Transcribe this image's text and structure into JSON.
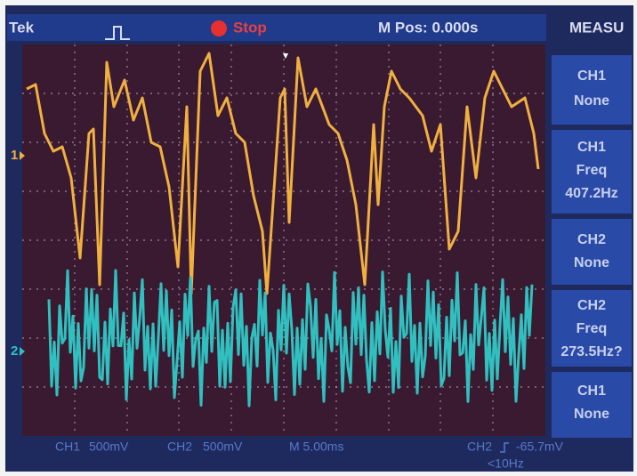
{
  "header": {
    "brand": "Tek",
    "status": "Stop",
    "position": "M Pos: 0.000s",
    "menu": "MEASU"
  },
  "channel_markers": [
    "1",
    "2"
  ],
  "measure_panels": [
    {
      "source": "CH1",
      "label": "None"
    },
    {
      "source": "CH1",
      "label": "Freq",
      "value": "407.2Hz"
    },
    {
      "source": "CH2",
      "label": "None"
    },
    {
      "source": "CH2",
      "label": "Freq",
      "value": "273.5Hz?"
    },
    {
      "source": "CH1",
      "label": "None"
    }
  ],
  "footer": {
    "ch1": "CH1",
    "ch1_scale": "500mV",
    "ch2": "CH2",
    "ch2_scale": "500mV",
    "timebase": "M 5.00ms",
    "trigger_source": "CH2",
    "trigger_level": "-65.7mV",
    "trigger_freq": "<10Hz"
  }
}
